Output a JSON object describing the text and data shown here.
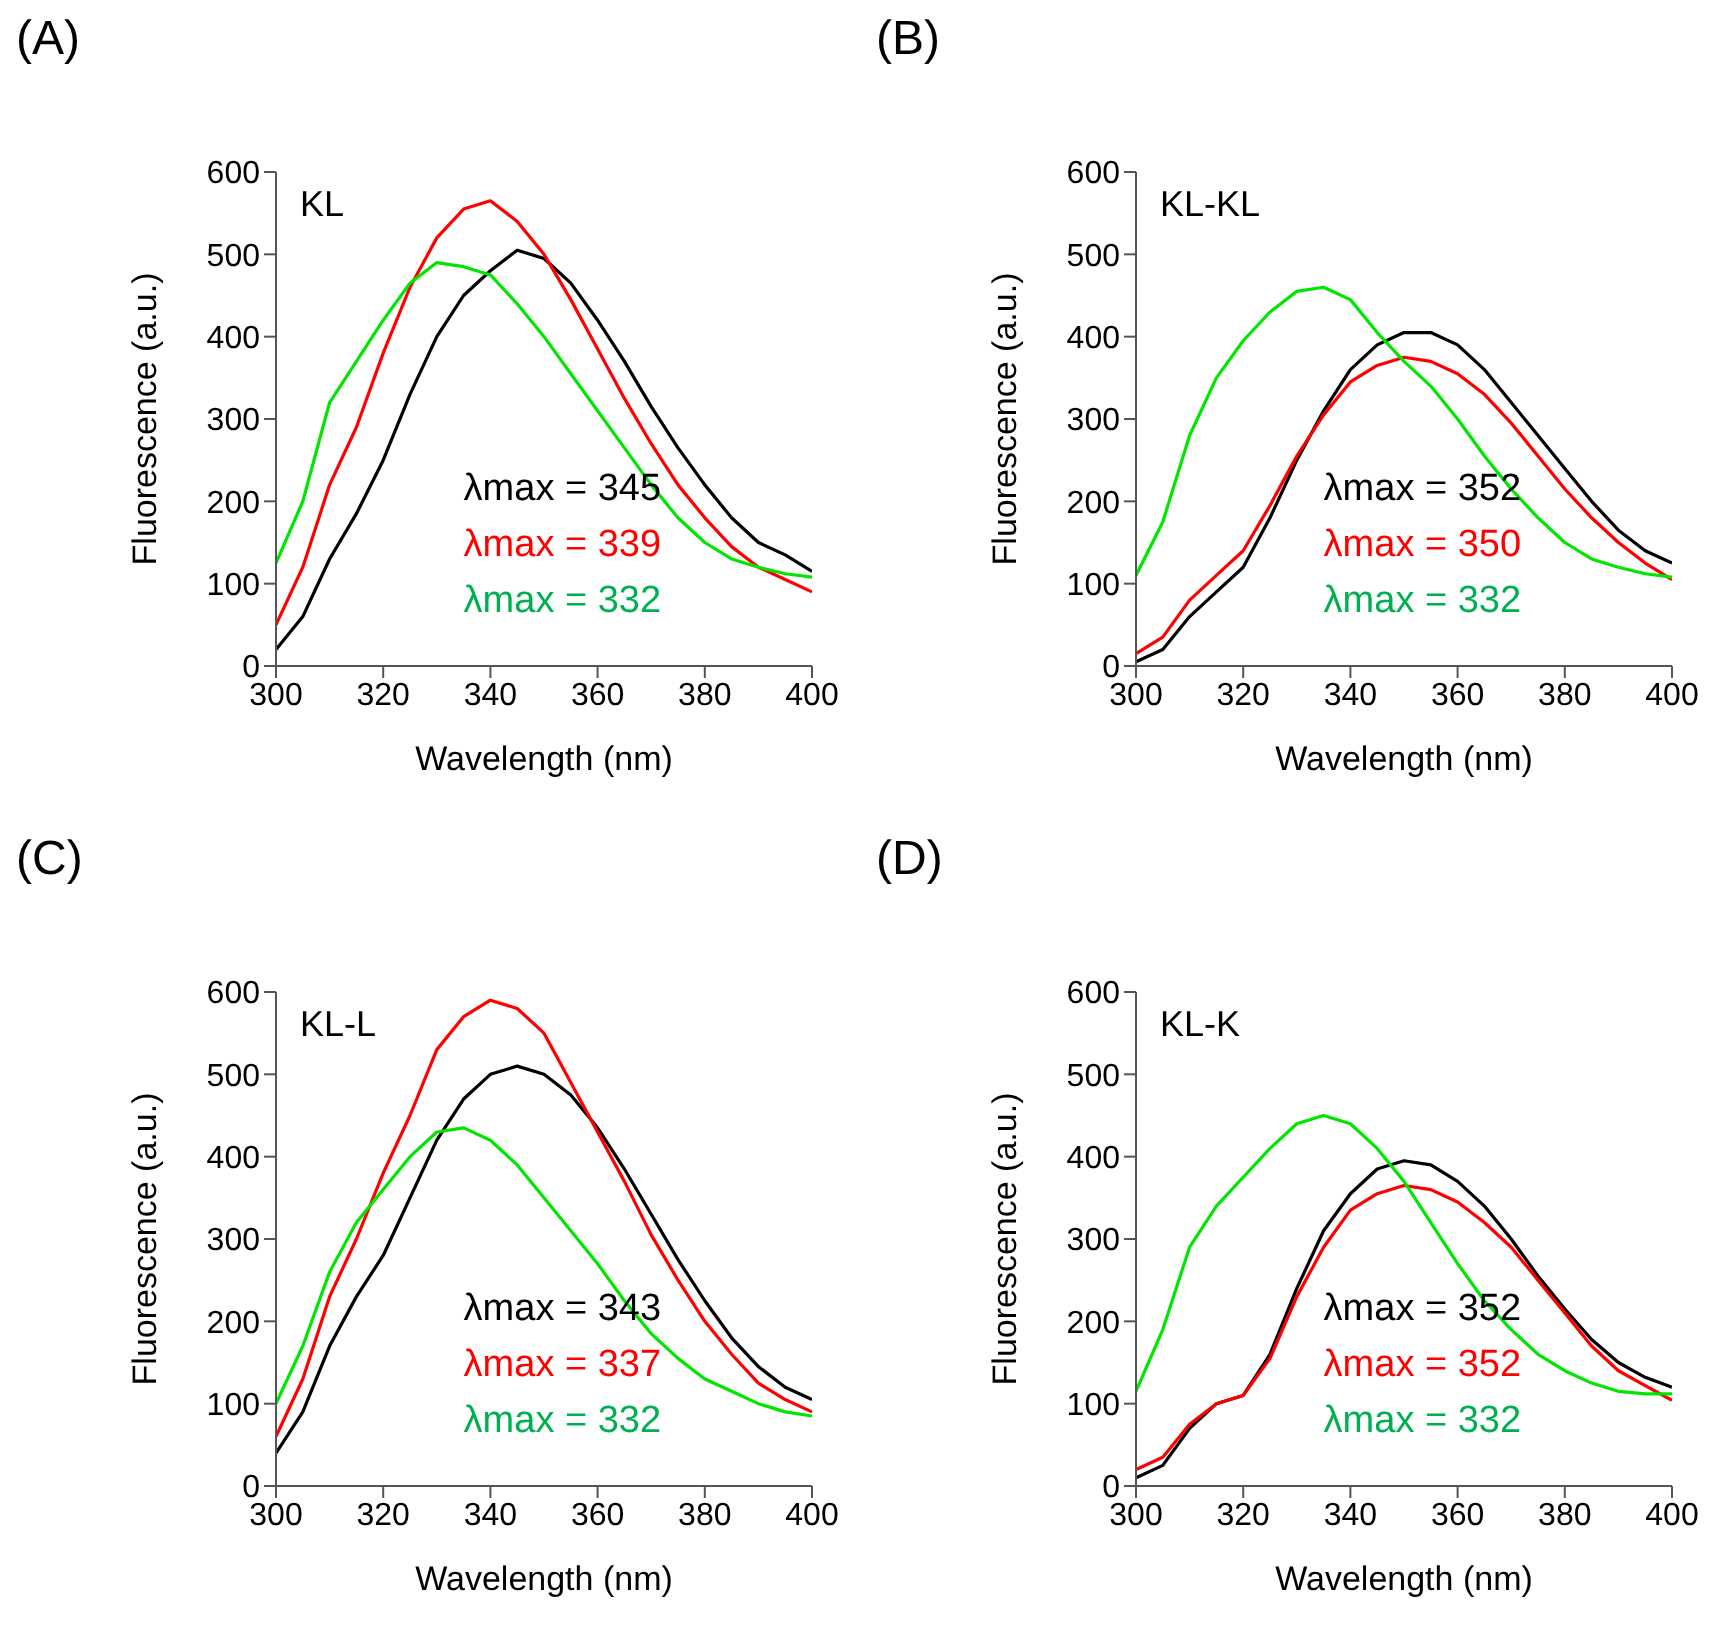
{
  "chart_data": [
    {
      "type": "line",
      "title": "(A)",
      "subtitle": "KL",
      "xlabel": "Wavelength (nm)",
      "ylabel": "Fluorescence (a.u.)",
      "x": [
        300,
        305,
        310,
        315,
        320,
        325,
        330,
        335,
        340,
        345,
        350,
        355,
        360,
        365,
        370,
        375,
        380,
        385,
        390,
        395,
        400
      ],
      "series": [
        {
          "color": "#000000",
          "values": [
            20,
            60,
            130,
            185,
            250,
            330,
            400,
            450,
            480,
            505,
            495,
            465,
            420,
            370,
            315,
            265,
            220,
            180,
            150,
            135,
            115
          ]
        },
        {
          "color": "#ff0000",
          "values": [
            50,
            120,
            220,
            290,
            380,
            460,
            520,
            555,
            565,
            540,
            500,
            445,
            385,
            325,
            270,
            220,
            180,
            145,
            120,
            105,
            90
          ]
        },
        {
          "color": "#00e600",
          "values": [
            125,
            200,
            320,
            370,
            420,
            465,
            490,
            485,
            475,
            440,
            400,
            355,
            310,
            265,
            220,
            180,
            150,
            130,
            120,
            112,
            108
          ]
        }
      ],
      "annotations": [
        "λmax = 345",
        "λmax = 339",
        "λmax = 332"
      ],
      "xlim": [
        300,
        400
      ],
      "xticks": [
        300,
        320,
        340,
        360,
        380,
        400
      ],
      "ylim": [
        0,
        600
      ],
      "yticks": [
        0,
        100,
        200,
        300,
        400,
        500,
        600
      ],
      "grid": false,
      "legend": false
    },
    {
      "type": "line",
      "title": "(B)",
      "subtitle": "KL-KL",
      "xlabel": "Wavelength (nm)",
      "ylabel": "Fluorescence (a.u.)",
      "x": [
        300,
        305,
        310,
        315,
        320,
        325,
        330,
        335,
        340,
        345,
        350,
        355,
        360,
        365,
        370,
        375,
        380,
        385,
        390,
        395,
        400
      ],
      "series": [
        {
          "color": "#000000",
          "values": [
            5,
            20,
            60,
            90,
            120,
            180,
            250,
            310,
            360,
            390,
            405,
            405,
            390,
            360,
            320,
            280,
            240,
            200,
            165,
            140,
            125
          ]
        },
        {
          "color": "#ff0000",
          "values": [
            15,
            35,
            80,
            110,
            140,
            195,
            255,
            305,
            345,
            365,
            375,
            370,
            355,
            330,
            295,
            255,
            215,
            180,
            150,
            125,
            105
          ]
        },
        {
          "color": "#00e600",
          "values": [
            110,
            175,
            280,
            350,
            395,
            430,
            455,
            460,
            445,
            405,
            370,
            340,
            300,
            255,
            215,
            180,
            150,
            130,
            120,
            112,
            108
          ]
        }
      ],
      "annotations": [
        "λmax = 352",
        "λmax = 350",
        "λmax = 332"
      ],
      "xlim": [
        300,
        400
      ],
      "xticks": [
        300,
        320,
        340,
        360,
        380,
        400
      ],
      "ylim": [
        0,
        600
      ],
      "yticks": [
        0,
        100,
        200,
        300,
        400,
        500,
        600
      ],
      "grid": false,
      "legend": false
    },
    {
      "type": "line",
      "title": "(C)",
      "subtitle": "KL-L",
      "xlabel": "Wavelength (nm)",
      "ylabel": "Fluorescence (a.u.)",
      "x": [
        300,
        305,
        310,
        315,
        320,
        325,
        330,
        335,
        340,
        345,
        350,
        355,
        360,
        365,
        370,
        375,
        380,
        385,
        390,
        395,
        400
      ],
      "series": [
        {
          "color": "#000000",
          "values": [
            40,
            90,
            170,
            230,
            280,
            350,
            420,
            470,
            500,
            510,
            500,
            475,
            435,
            385,
            330,
            275,
            225,
            180,
            145,
            120,
            105
          ]
        },
        {
          "color": "#ff0000",
          "values": [
            60,
            130,
            230,
            300,
            380,
            450,
            530,
            570,
            590,
            580,
            550,
            490,
            430,
            370,
            305,
            250,
            200,
            160,
            125,
            105,
            90
          ]
        },
        {
          "color": "#00e600",
          "values": [
            100,
            170,
            260,
            320,
            360,
            400,
            430,
            435,
            420,
            390,
            350,
            310,
            270,
            225,
            185,
            155,
            130,
            115,
            100,
            90,
            85
          ]
        }
      ],
      "annotations": [
        "λmax = 343",
        "λmax = 337",
        "λmax = 332"
      ],
      "xlim": [
        300,
        400
      ],
      "xticks": [
        300,
        320,
        340,
        360,
        380,
        400
      ],
      "ylim": [
        0,
        600
      ],
      "yticks": [
        0,
        100,
        200,
        300,
        400,
        500,
        600
      ],
      "grid": false,
      "legend": false
    },
    {
      "type": "line",
      "title": "(D)",
      "subtitle": "KL-K",
      "xlabel": "Wavelength (nm)",
      "ylabel": "Fluorescence (a.u.)",
      "x": [
        300,
        305,
        310,
        315,
        320,
        325,
        330,
        335,
        340,
        345,
        350,
        355,
        360,
        365,
        370,
        375,
        380,
        385,
        390,
        395,
        400
      ],
      "series": [
        {
          "color": "#000000",
          "values": [
            10,
            25,
            70,
            100,
            110,
            160,
            240,
            310,
            355,
            385,
            395,
            390,
            370,
            340,
            300,
            255,
            215,
            178,
            150,
            132,
            120
          ]
        },
        {
          "color": "#ff0000",
          "values": [
            20,
            35,
            75,
            100,
            110,
            155,
            230,
            290,
            335,
            355,
            365,
            360,
            345,
            320,
            290,
            250,
            210,
            170,
            140,
            122,
            104
          ]
        },
        {
          "color": "#00e600",
          "values": [
            115,
            190,
            290,
            340,
            375,
            410,
            440,
            450,
            440,
            410,
            370,
            320,
            270,
            225,
            190,
            160,
            140,
            125,
            115,
            112,
            112
          ]
        }
      ],
      "annotations": [
        "λmax = 352",
        "λmax = 352",
        "λmax = 332"
      ],
      "xlim": [
        300,
        400
      ],
      "xticks": [
        300,
        320,
        340,
        360,
        380,
        400
      ],
      "ylim": [
        0,
        600
      ],
      "yticks": [
        0,
        100,
        200,
        300,
        400,
        500,
        600
      ],
      "grid": false,
      "legend": false
    }
  ]
}
